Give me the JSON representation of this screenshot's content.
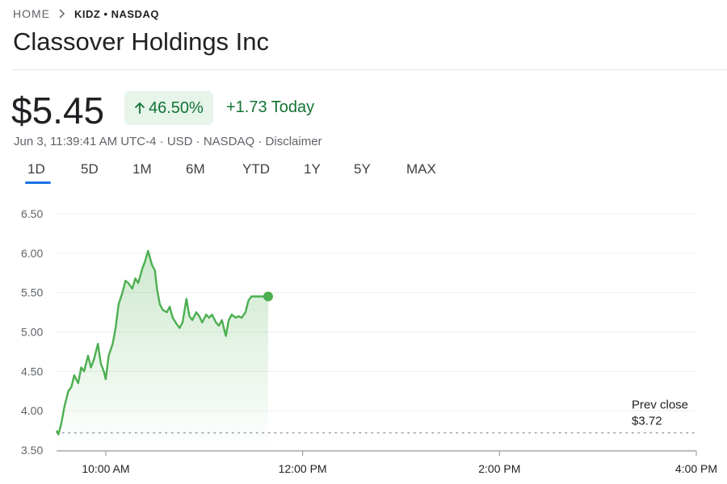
{
  "breadcrumb": {
    "home": "HOME",
    "ticker": "KIDZ • NASDAQ"
  },
  "title": "Classover Holdings Inc",
  "price": "$5.45",
  "change_percent": "46.50%",
  "change_today": "+1.73 Today",
  "meta": {
    "timestamp": "Jun 3, 11:39:41 AM UTC-4",
    "currency": "USD",
    "exchange": "NASDAQ",
    "disclaimer": "Disclaimer"
  },
  "tabs": [
    "1D",
    "5D",
    "1M",
    "6M",
    "YTD",
    "1Y",
    "5Y",
    "MAX"
  ],
  "active_tab": "1D",
  "colors": {
    "up": "#137333",
    "line": "#4caf50",
    "accent": "#1a73e8"
  },
  "chart_data": {
    "type": "line",
    "x_unit": "time of day (hours, 24h)",
    "xlim": [
      9.5,
      16.0
    ],
    "ylim": [
      3.5,
      6.5
    ],
    "y_ticks": [
      "6.50",
      "6.00",
      "5.50",
      "5.00",
      "4.50",
      "4.00",
      "3.50"
    ],
    "y_tick_values": [
      6.5,
      6.0,
      5.5,
      5.0,
      4.5,
      4.0,
      3.5
    ],
    "x_ticks": [
      "10:00 AM",
      "12:00 PM",
      "2:00 PM",
      "4:00 PM"
    ],
    "x_tick_values": [
      10,
      12,
      14,
      16
    ],
    "prev_close": {
      "label": "Prev close",
      "value_label": "$3.72",
      "value": 3.72
    },
    "x": [
      9.5,
      9.52,
      9.55,
      9.58,
      9.62,
      9.65,
      9.68,
      9.72,
      9.75,
      9.78,
      9.82,
      9.85,
      9.88,
      9.92,
      9.95,
      9.98,
      10.0,
      10.03,
      10.07,
      10.1,
      10.13,
      10.17,
      10.2,
      10.23,
      10.27,
      10.3,
      10.33,
      10.37,
      10.4,
      10.43,
      10.47,
      10.5,
      10.52,
      10.55,
      10.58,
      10.62,
      10.65,
      10.68,
      10.72,
      10.75,
      10.78,
      10.82,
      10.85,
      10.88,
      10.92,
      10.95,
      10.98,
      11.02,
      11.05,
      11.08,
      11.12,
      11.15,
      11.18,
      11.22,
      11.25,
      11.28,
      11.32,
      11.35,
      11.38,
      11.42,
      11.45,
      11.48,
      11.52,
      11.55,
      11.58,
      11.62,
      11.65
    ],
    "y": [
      3.75,
      3.7,
      3.85,
      4.05,
      4.25,
      4.3,
      4.45,
      4.35,
      4.55,
      4.5,
      4.7,
      4.55,
      4.65,
      4.85,
      4.6,
      4.5,
      4.4,
      4.7,
      4.85,
      5.05,
      5.35,
      5.5,
      5.65,
      5.62,
      5.55,
      5.68,
      5.62,
      5.8,
      5.9,
      6.03,
      5.85,
      5.78,
      5.55,
      5.35,
      5.28,
      5.25,
      5.32,
      5.18,
      5.1,
      5.05,
      5.12,
      5.42,
      5.2,
      5.15,
      5.25,
      5.2,
      5.12,
      5.22,
      5.18,
      5.22,
      5.12,
      5.08,
      5.15,
      4.95,
      5.15,
      5.22,
      5.18,
      5.2,
      5.18,
      5.25,
      5.4,
      5.45,
      5.45,
      5.45,
      5.45,
      5.45,
      5.45
    ]
  }
}
